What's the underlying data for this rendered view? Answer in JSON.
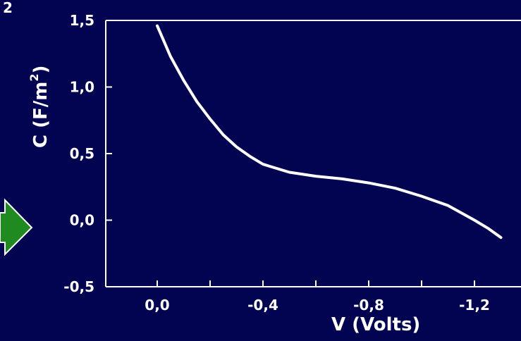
{
  "page": {
    "corner_fragment": "2"
  },
  "colors": {
    "background": "#020452",
    "axis": "#ffffff",
    "line": "#ffffff",
    "arrow": "#1f8a1f"
  },
  "icons": {
    "left_arrow": "right-arrow-icon"
  },
  "chart_data": {
    "type": "line",
    "xlabel": "V (Volts)",
    "ylabel": "C (F/m",
    "ylabel_superscript": "2",
    "ylabel_close": ")",
    "xlim": [
      0.2,
      -1.4
    ],
    "ylim": [
      -0.5,
      1.5
    ],
    "x_ticks": [
      {
        "value": 0.0,
        "label": "0,0"
      },
      {
        "value": -0.4,
        "label": "-0,4"
      },
      {
        "value": -0.8,
        "label": "-0,8"
      },
      {
        "value": -1.2,
        "label": "-1,2"
      }
    ],
    "x_minor_ticks": [
      -0.2,
      -0.6,
      -1.0
    ],
    "y_ticks": [
      {
        "value": 1.5,
        "label": "1,5"
      },
      {
        "value": 1.0,
        "label": "1,0"
      },
      {
        "value": 0.5,
        "label": "0,5"
      },
      {
        "value": 0.0,
        "label": "0,0"
      },
      {
        "value": -0.5,
        "label": "-0,5"
      }
    ],
    "series": [
      {
        "x": [
          0.0,
          -0.05,
          -0.1,
          -0.15,
          -0.2,
          -0.25,
          -0.3,
          -0.35,
          -0.4,
          -0.5,
          -0.6,
          -0.7,
          -0.8,
          -0.9,
          -1.0,
          -1.1,
          -1.2,
          -1.25,
          -1.3
        ],
        "y": [
          1.46,
          1.23,
          1.05,
          0.89,
          0.76,
          0.64,
          0.55,
          0.48,
          0.42,
          0.36,
          0.33,
          0.31,
          0.28,
          0.24,
          0.18,
          0.11,
          0.0,
          -0.06,
          -0.13
        ]
      }
    ]
  }
}
